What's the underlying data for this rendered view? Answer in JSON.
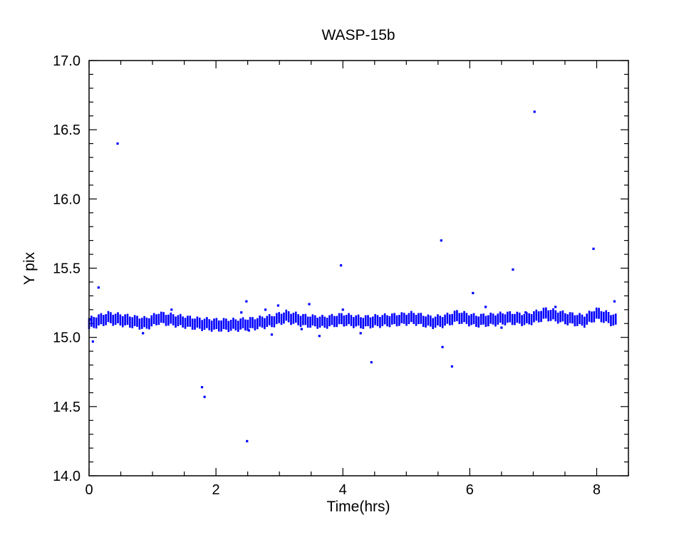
{
  "chart_data": {
    "type": "scatter",
    "title": "WASP-15b",
    "xlabel": "Time(hrs)",
    "ylabel": "Y pix",
    "xlim": [
      0,
      8.5
    ],
    "ylim": [
      14.0,
      17.0
    ],
    "xticks": [
      0,
      2,
      4,
      6,
      8
    ],
    "xtick_labels": [
      "0",
      "2",
      "4",
      "6",
      "8"
    ],
    "xminor_step": 0.5,
    "yticks": [
      14.0,
      14.5,
      15.0,
      15.5,
      16.0,
      16.5,
      17.0
    ],
    "ytick_labels": [
      "14.0",
      "14.5",
      "15.0",
      "15.5",
      "16.0",
      "16.5",
      "17.0"
    ],
    "yminor_step": 0.1,
    "grid": false,
    "marker_color": "#0000ff",
    "main_band": {
      "x_start": 0.0,
      "x_end": 8.3,
      "points": 220,
      "center_knots": [
        [
          0.0,
          15.1
        ],
        [
          0.3,
          15.14
        ],
        [
          0.6,
          15.12
        ],
        [
          0.9,
          15.1
        ],
        [
          1.1,
          15.14
        ],
        [
          1.4,
          15.12
        ],
        [
          1.7,
          15.1
        ],
        [
          2.0,
          15.09
        ],
        [
          2.3,
          15.09
        ],
        [
          2.6,
          15.1
        ],
        [
          2.9,
          15.12
        ],
        [
          3.1,
          15.15
        ],
        [
          3.4,
          15.12
        ],
        [
          3.7,
          15.11
        ],
        [
          4.0,
          15.13
        ],
        [
          4.3,
          15.11
        ],
        [
          4.6,
          15.12
        ],
        [
          4.9,
          15.13
        ],
        [
          5.1,
          15.14
        ],
        [
          5.4,
          15.11
        ],
        [
          5.6,
          15.12
        ],
        [
          5.8,
          15.15
        ],
        [
          6.1,
          15.12
        ],
        [
          6.4,
          15.13
        ],
        [
          6.6,
          15.14
        ],
        [
          6.9,
          15.13
        ],
        [
          7.2,
          15.17
        ],
        [
          7.5,
          15.14
        ],
        [
          7.8,
          15.12
        ],
        [
          8.0,
          15.17
        ],
        [
          8.3,
          15.12
        ]
      ],
      "spread": 0.08
    },
    "outliers": [
      [
        0.02,
        15.13
      ],
      [
        0.06,
        14.97
      ],
      [
        0.15,
        15.36
      ],
      [
        0.45,
        16.4
      ],
      [
        0.85,
        15.03
      ],
      [
        1.3,
        15.2
      ],
      [
        1.78,
        14.64
      ],
      [
        1.82,
        14.57
      ],
      [
        2.4,
        15.18
      ],
      [
        2.48,
        15.26
      ],
      [
        2.52,
        15.05
      ],
      [
        2.78,
        15.2
      ],
      [
        2.88,
        15.02
      ],
      [
        2.98,
        15.23
      ],
      [
        3.35,
        15.06
      ],
      [
        3.47,
        15.24
      ],
      [
        3.63,
        15.01
      ],
      [
        3.97,
        15.52
      ],
      [
        4.0,
        15.2
      ],
      [
        4.28,
        15.03
      ],
      [
        4.45,
        14.82
      ],
      [
        5.55,
        15.7
      ],
      [
        5.57,
        14.93
      ],
      [
        5.72,
        14.79
      ],
      [
        6.05,
        15.32
      ],
      [
        6.25,
        15.22
      ],
      [
        6.5,
        15.07
      ],
      [
        6.68,
        15.49
      ],
      [
        6.88,
        15.18
      ],
      [
        7.02,
        16.63
      ],
      [
        7.35,
        15.22
      ],
      [
        7.95,
        15.64
      ],
      [
        8.28,
        15.26
      ],
      [
        2.49,
        14.25
      ]
    ]
  }
}
